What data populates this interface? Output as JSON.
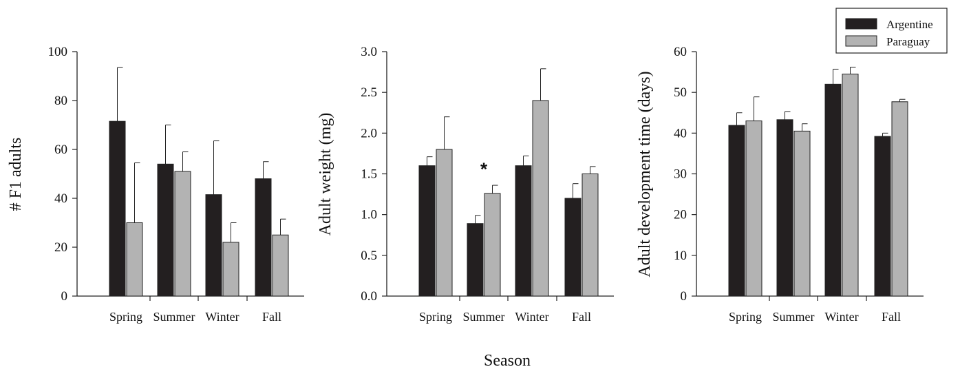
{
  "chart_data": [
    {
      "type": "bar",
      "ylabel": "# F1 adults",
      "ylim": [
        0,
        100
      ],
      "yticks": [
        "0",
        "20",
        "40",
        "60",
        "80",
        "100"
      ],
      "categories": [
        "Spring",
        "Summer",
        "Winter",
        "Fall"
      ],
      "series": [
        {
          "name": "Argentine",
          "values": [
            71.5,
            54,
            41.5,
            48
          ],
          "errors": [
            22,
            16,
            22,
            7
          ]
        },
        {
          "name": "Paraguay",
          "values": [
            30,
            51,
            22,
            25
          ],
          "errors": [
            24.5,
            8,
            8,
            6.5
          ]
        }
      ],
      "annotations": []
    },
    {
      "type": "bar",
      "ylabel": "Adult weight (mg)",
      "ylim": [
        0,
        3
      ],
      "yticks": [
        "0.0",
        "0.5",
        "1.0",
        "1.5",
        "2.0",
        "2.5",
        "3.0"
      ],
      "categories": [
        "Spring",
        "Summer",
        "Winter",
        "Fall"
      ],
      "series": [
        {
          "name": "Argentine",
          "values": [
            1.6,
            0.89,
            1.6,
            1.2
          ],
          "errors": [
            0.11,
            0.1,
            0.12,
            0.18
          ]
        },
        {
          "name": "Paraguay",
          "values": [
            1.8,
            1.26,
            2.4,
            1.5
          ],
          "errors": [
            0.4,
            0.1,
            0.39,
            0.09
          ]
        }
      ],
      "annotations": [
        {
          "text": "*",
          "category": "Summer",
          "y": 1.62
        }
      ]
    },
    {
      "type": "bar",
      "ylabel": "Adult development time (days)",
      "ylim": [
        0,
        60
      ],
      "yticks": [
        "0",
        "10",
        "20",
        "30",
        "40",
        "50",
        "60"
      ],
      "categories": [
        "Spring",
        "Summer",
        "Winter",
        "Fall"
      ],
      "series": [
        {
          "name": "Argentine",
          "values": [
            41.9,
            43.3,
            52,
            39.2
          ],
          "errors": [
            3.1,
            2,
            3.7,
            0.8
          ]
        },
        {
          "name": "Paraguay",
          "values": [
            43,
            40.5,
            54.5,
            47.7
          ],
          "errors": [
            5.9,
            1.8,
            1.7,
            0.6
          ]
        }
      ],
      "annotations": []
    }
  ],
  "xlabel": "Season",
  "legend": {
    "items": [
      {
        "label": "Argentine",
        "color": "#231f20"
      },
      {
        "label": "Paraguay",
        "color": "#b3b3b3"
      }
    ]
  },
  "colors": {
    "argentine": "#231f20",
    "paraguay": "#b3b3b3",
    "axis": "#222222"
  }
}
